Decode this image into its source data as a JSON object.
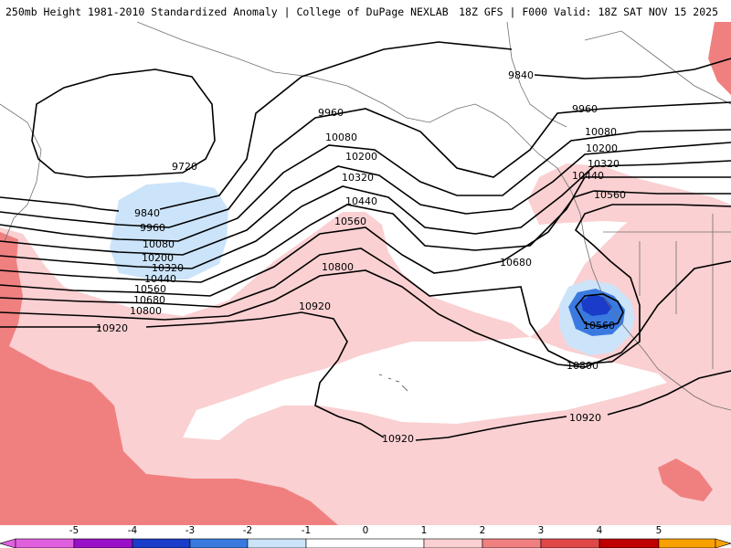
{
  "header": {
    "title_left": "250mb Height 1981-2010 Standardized Anomaly | College of DuPage NEXLAB",
    "title_right": "18Z GFS | F000 Valid: 18Z SAT NOV 15 2025"
  },
  "colors": {
    "anom_neg5": "#e060e0",
    "anom_neg4": "#9a10c8",
    "anom_neg3": "#1a3cc8",
    "anom_neg2": "#3a7ae0",
    "anom_neg1": "#cce4fa",
    "anom_zero": "#ffffff",
    "anom_pos1": "#fad0d2",
    "anom_pos2": "#f08080",
    "anom_pos3": "#e04848",
    "anom_pos4": "#c00000",
    "anom_pos5": "#f8a000",
    "contour": "#000000",
    "coastline": "#707070"
  },
  "contours": {
    "labels": [
      "9720",
      "9840",
      "9960",
      "10080",
      "10200",
      "10320",
      "10440",
      "10560",
      "10680",
      "10800",
      "10920"
    ]
  },
  "colorbar": {
    "ticks": [
      "-5",
      "-4",
      "-3",
      "-2",
      "-1",
      "0",
      "1",
      "2",
      "3",
      "4",
      "5"
    ]
  }
}
